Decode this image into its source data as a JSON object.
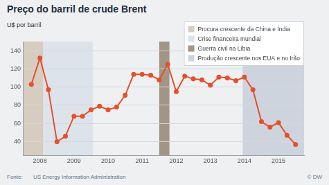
{
  "chart_data": {
    "type": "line",
    "title": "Preço do barril de crude Brent",
    "ylabel": "U$ por barril",
    "x": [
      2008.25,
      2008.5,
      2008.75,
      2009,
      2009.25,
      2009.5,
      2009.75,
      2010,
      2010.25,
      2010.5,
      2010.75,
      2011,
      2011.25,
      2011.5,
      2011.75,
      2012,
      2012.25,
      2012.5,
      2012.75,
      2013,
      2013.25,
      2013.5,
      2013.75,
      2014,
      2014.25,
      2014.5,
      2014.75,
      2015,
      2015.25,
      2015.5,
      2015.75,
      2016
    ],
    "values": [
      103,
      132,
      97,
      40,
      46,
      68,
      68,
      75,
      79,
      75,
      78,
      91,
      114,
      114,
      113,
      108,
      125,
      95,
      112,
      109,
      108,
      102,
      111,
      110,
      107,
      111,
      97,
      62,
      56,
      61,
      47,
      37
    ],
    "color": "#e5502a",
    "marker": "circle",
    "xlim": [
      2008,
      2016.25
    ],
    "xticks": [
      {
        "value": 2008.5,
        "label": "2008"
      },
      {
        "value": 2009.5,
        "label": "2009"
      },
      {
        "value": 2010.5,
        "label": "2010"
      },
      {
        "value": 2011.5,
        "label": "2011"
      },
      {
        "value": 2012.5,
        "label": "2012"
      },
      {
        "value": 2013.5,
        "label": "2013"
      },
      {
        "value": 2014.5,
        "label": "2014"
      },
      {
        "value": 2015.5,
        "label": "2015"
      }
    ],
    "ylim": [
      25,
      150
    ],
    "yticks": [
      40,
      60,
      80,
      100,
      120,
      140
    ],
    "grid": true,
    "legend": "top-right",
    "annotations": [
      {
        "label": "Procura crescente da China e Índia",
        "color": "#d6cdc0",
        "xrange": [
          2008,
          2008.6
        ]
      },
      {
        "label": "Crise financeira mundial",
        "color": "#dde3ea",
        "xrange": [
          2008.6,
          2010.05
        ]
      },
      {
        "label": "Guerra civil na Líbia",
        "color": "#a39585",
        "xrange": [
          2012.0,
          2012.3
        ]
      },
      {
        "label": "Produção crescente nos EUA e no Irão",
        "color": "#cdd4dd",
        "xrange": [
          2014.45,
          2016.25
        ]
      }
    ],
    "source_label": "Fonte:",
    "source": "US Energy Information Administration",
    "credit": "© DW"
  }
}
